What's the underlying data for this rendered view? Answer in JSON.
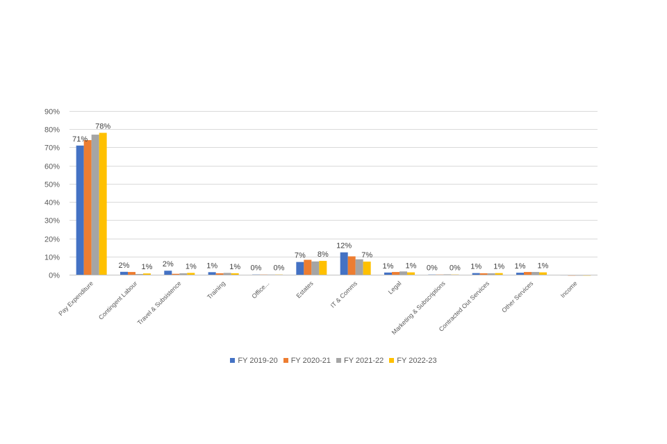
{
  "chart_data": {
    "type": "bar",
    "title": "",
    "xlabel": "",
    "ylabel": "",
    "ylim": [
      0,
      0.9
    ],
    "yticks": [
      "0%",
      "10%",
      "20%",
      "30%",
      "40%",
      "50%",
      "60%",
      "70%",
      "80%",
      "90%"
    ],
    "grid": true,
    "legend_position": "bottom",
    "categories": [
      "Pay Expenditure",
      "Contingent Labour",
      "Travel & Subsistence",
      "Training",
      "Office...",
      "Estates",
      "IT & Comms",
      "Legal",
      "Marketing & Subscriptions",
      "Contracted Out Services",
      "Other Services",
      "Income"
    ],
    "series": [
      {
        "name": "FY 2019-20",
        "color": "#4472c4",
        "values": [
          0.71,
          0.016,
          0.022,
          0.014,
          0.001,
          0.07,
          0.123,
          0.012,
          0.001,
          0.009,
          0.011,
          -0.004
        ]
      },
      {
        "name": "FY 2020-21",
        "color": "#ed7d31",
        "values": [
          0.74,
          0.015,
          0.005,
          0.008,
          0.001,
          0.082,
          0.101,
          0.015,
          0.001,
          0.008,
          0.015,
          -0.005
        ]
      },
      {
        "name": "FY 2021-22",
        "color": "#a5a5a5",
        "values": [
          0.77,
          0.004,
          0.008,
          0.01,
          0.001,
          0.073,
          0.085,
          0.018,
          0.002,
          0.008,
          0.015,
          -0.005
        ]
      },
      {
        "name": "FY 2022-23",
        "color": "#ffc000",
        "values": [
          0.78,
          0.007,
          0.01,
          0.008,
          0.001,
          0.076,
          0.072,
          0.013,
          0.001,
          0.009,
          0.013,
          -0.005
        ]
      }
    ],
    "data_labels": [
      {
        "category": 0,
        "series": 0,
        "text": "71%"
      },
      {
        "category": 0,
        "series": 3,
        "text": "78%"
      },
      {
        "category": 1,
        "series": 0,
        "text": "2%"
      },
      {
        "category": 1,
        "series": 3,
        "text": "1%"
      },
      {
        "category": 2,
        "series": 0,
        "text": "2%"
      },
      {
        "category": 2,
        "series": 3,
        "text": "1%"
      },
      {
        "category": 3,
        "series": 0,
        "text": "1%"
      },
      {
        "category": 3,
        "series": 3,
        "text": "1%"
      },
      {
        "category": 4,
        "series": 0,
        "text": "0%"
      },
      {
        "category": 4,
        "series": 3,
        "text": "0%"
      },
      {
        "category": 5,
        "series": 0,
        "text": "7%"
      },
      {
        "category": 5,
        "series": 3,
        "text": "8%"
      },
      {
        "category": 6,
        "series": 0,
        "text": "12%"
      },
      {
        "category": 6,
        "series": 3,
        "text": "7%"
      },
      {
        "category": 7,
        "series": 0,
        "text": "1%"
      },
      {
        "category": 7,
        "series": 3,
        "text": "1%"
      },
      {
        "category": 8,
        "series": 0,
        "text": "0%"
      },
      {
        "category": 8,
        "series": 3,
        "text": "0%"
      },
      {
        "category": 9,
        "series": 0,
        "text": "1%"
      },
      {
        "category": 9,
        "series": 3,
        "text": "1%"
      },
      {
        "category": 10,
        "series": 0,
        "text": "1%"
      },
      {
        "category": 10,
        "series": 3,
        "text": "1%"
      }
    ]
  }
}
